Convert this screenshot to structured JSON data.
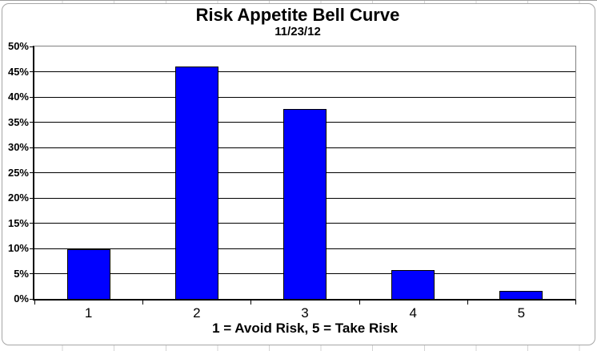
{
  "chart_data": {
    "type": "bar",
    "title": "Risk Appetite Bell Curve",
    "subtitle": "11/23/12",
    "xlabel": "1 = Avoid Risk, 5 = Take Risk",
    "ylabel": "",
    "categories": [
      "1",
      "2",
      "3",
      "4",
      "5"
    ],
    "values": [
      9.7,
      45.8,
      37.5,
      5.6,
      1.4
    ],
    "ylim": [
      0,
      50
    ],
    "ytick_step": 5,
    "ytick_labels": [
      "0%",
      "5%",
      "10%",
      "15%",
      "20%",
      "25%",
      "30%",
      "35%",
      "40%",
      "45%",
      "50%"
    ],
    "grid": true,
    "legend": false,
    "colors": {
      "bar_fill": "#0000ff",
      "bar_border": "#000000",
      "gridline": "#000000",
      "axis": "#000000",
      "plot_border": "#808080",
      "frame_border": "#a6a6a6",
      "background": "#ffffff",
      "text": "#000000"
    }
  }
}
